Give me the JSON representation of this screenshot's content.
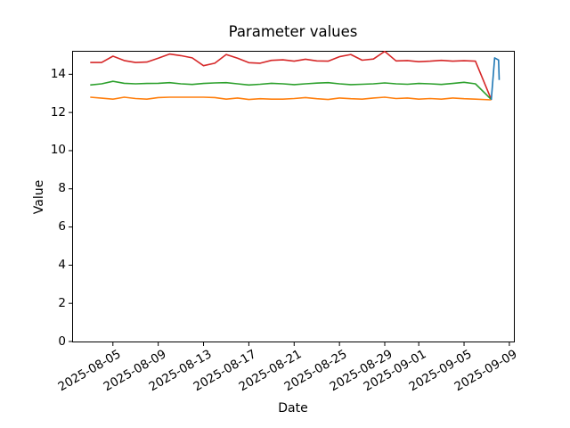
{
  "chart_data": {
    "type": "line",
    "title": "Parameter values",
    "xlabel": "Date",
    "ylabel": "Value",
    "grid": false,
    "legend": null,
    "x_unit": "days since 2025-08-03",
    "start_date": "2025-08-03",
    "xlim": [
      -1.6,
      37.4
    ],
    "ylim": [
      0,
      15.23
    ],
    "y_ticks": [
      0,
      2,
      4,
      6,
      8,
      10,
      12,
      14
    ],
    "x_ticks": [
      {
        "pos": 2,
        "label": "2025-08-05"
      },
      {
        "pos": 6,
        "label": "2025-08-09"
      },
      {
        "pos": 10,
        "label": "2025-08-13"
      },
      {
        "pos": 14,
        "label": "2025-08-17"
      },
      {
        "pos": 18,
        "label": "2025-08-21"
      },
      {
        "pos": 22,
        "label": "2025-08-25"
      },
      {
        "pos": 26,
        "label": "2025-08-29"
      },
      {
        "pos": 29,
        "label": "2025-09-01"
      },
      {
        "pos": 33,
        "label": "2025-09-05"
      },
      {
        "pos": 37,
        "label": "2025-09-09"
      }
    ],
    "dates": [
      "2025-08-03",
      "2025-08-04",
      "2025-08-05",
      "2025-08-06",
      "2025-08-07",
      "2025-08-08",
      "2025-08-09",
      "2025-08-10",
      "2025-08-11",
      "2025-08-12",
      "2025-08-13",
      "2025-08-14",
      "2025-08-15",
      "2025-08-16",
      "2025-08-17",
      "2025-08-18",
      "2025-08-19",
      "2025-08-20",
      "2025-08-21",
      "2025-08-22",
      "2025-08-23",
      "2025-08-24",
      "2025-08-25",
      "2025-08-26",
      "2025-08-27",
      "2025-08-28",
      "2025-08-29",
      "2025-08-30",
      "2025-08-31",
      "2025-09-01",
      "2025-09-02",
      "2025-09-03",
      "2025-09-04",
      "2025-09-05",
      "2025-09-06",
      "2025-09-07"
    ],
    "series": [
      {
        "name": "red",
        "color": "#d62728",
        "points": [
          [
            0,
            14.62
          ],
          [
            1,
            14.62
          ],
          [
            2,
            14.95
          ],
          [
            3,
            14.72
          ],
          [
            4,
            14.62
          ],
          [
            5,
            14.64
          ],
          [
            6,
            14.84
          ],
          [
            7,
            15.06
          ],
          [
            8,
            14.98
          ],
          [
            9,
            14.86
          ],
          [
            10,
            14.45
          ],
          [
            11,
            14.58
          ],
          [
            12,
            15.04
          ],
          [
            13,
            14.84
          ],
          [
            14,
            14.61
          ],
          [
            15,
            14.58
          ],
          [
            16,
            14.73
          ],
          [
            17,
            14.76
          ],
          [
            18,
            14.69
          ],
          [
            19,
            14.79
          ],
          [
            20,
            14.7
          ],
          [
            21,
            14.69
          ],
          [
            22,
            14.92
          ],
          [
            23,
            15.04
          ],
          [
            24,
            14.74
          ],
          [
            25,
            14.8
          ],
          [
            26,
            15.2
          ],
          [
            27,
            14.7
          ],
          [
            28,
            14.72
          ],
          [
            29,
            14.66
          ],
          [
            30,
            14.69
          ],
          [
            31,
            14.73
          ],
          [
            32,
            14.69
          ],
          [
            33,
            14.71
          ],
          [
            34,
            14.69
          ],
          [
            35.4,
            12.68
          ]
        ]
      },
      {
        "name": "green",
        "color": "#2ca02c",
        "points": [
          [
            0,
            13.44
          ],
          [
            1,
            13.5
          ],
          [
            2,
            13.63
          ],
          [
            3,
            13.53
          ],
          [
            4,
            13.5
          ],
          [
            5,
            13.52
          ],
          [
            6,
            13.53
          ],
          [
            7,
            13.56
          ],
          [
            8,
            13.5
          ],
          [
            9,
            13.47
          ],
          [
            10,
            13.52
          ],
          [
            11,
            13.55
          ],
          [
            12,
            13.56
          ],
          [
            13,
            13.5
          ],
          [
            14,
            13.44
          ],
          [
            15,
            13.48
          ],
          [
            16,
            13.53
          ],
          [
            17,
            13.5
          ],
          [
            18,
            13.46
          ],
          [
            19,
            13.5
          ],
          [
            20,
            13.54
          ],
          [
            21,
            13.56
          ],
          [
            22,
            13.5
          ],
          [
            23,
            13.46
          ],
          [
            24,
            13.48
          ],
          [
            25,
            13.5
          ],
          [
            26,
            13.55
          ],
          [
            27,
            13.5
          ],
          [
            28,
            13.48
          ],
          [
            29,
            13.52
          ],
          [
            30,
            13.5
          ],
          [
            31,
            13.47
          ],
          [
            32,
            13.52
          ],
          [
            33,
            13.58
          ],
          [
            34,
            13.5
          ],
          [
            35.4,
            12.68
          ]
        ]
      },
      {
        "name": "orange",
        "color": "#ff7f0e",
        "points": [
          [
            0,
            12.8
          ],
          [
            1,
            12.75
          ],
          [
            2,
            12.7
          ],
          [
            3,
            12.8
          ],
          [
            4,
            12.73
          ],
          [
            5,
            12.7
          ],
          [
            6,
            12.78
          ],
          [
            7,
            12.8
          ],
          [
            8,
            12.8
          ],
          [
            9,
            12.8
          ],
          [
            10,
            12.8
          ],
          [
            11,
            12.78
          ],
          [
            12,
            12.7
          ],
          [
            13,
            12.76
          ],
          [
            14,
            12.68
          ],
          [
            15,
            12.72
          ],
          [
            16,
            12.7
          ],
          [
            17,
            12.7
          ],
          [
            18,
            12.73
          ],
          [
            19,
            12.78
          ],
          [
            20,
            12.72
          ],
          [
            21,
            12.68
          ],
          [
            22,
            12.76
          ],
          [
            23,
            12.72
          ],
          [
            24,
            12.7
          ],
          [
            25,
            12.76
          ],
          [
            26,
            12.8
          ],
          [
            27,
            12.73
          ],
          [
            28,
            12.76
          ],
          [
            29,
            12.7
          ],
          [
            30,
            12.73
          ],
          [
            31,
            12.7
          ],
          [
            32,
            12.76
          ],
          [
            33,
            12.72
          ],
          [
            34,
            12.7
          ],
          [
            35.4,
            12.66
          ]
        ]
      },
      {
        "name": "blue",
        "color": "#1f77b4",
        "points": [
          [
            35.4,
            12.66
          ],
          [
            35.7,
            14.86
          ],
          [
            36.05,
            14.75
          ],
          [
            36.1,
            13.7
          ]
        ]
      }
    ],
    "axis_color": "#000000",
    "background_color": "#ffffff"
  }
}
